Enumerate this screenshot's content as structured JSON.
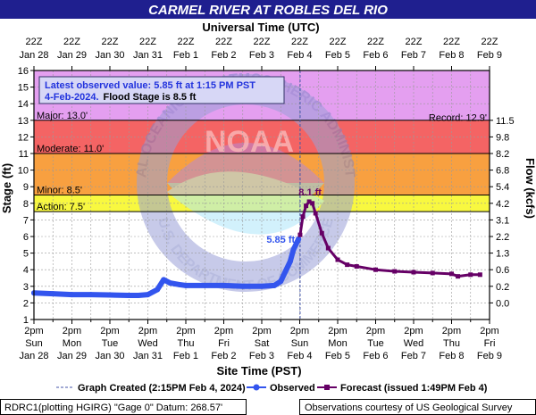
{
  "title": "CARMEL RIVER AT ROBLES DEL RIO",
  "top_axis_title": "Universal Time (UTC)",
  "bottom_axis_title": "Site Time (PST)",
  "left_axis_title": "Stage (ft)",
  "right_axis_title": "Flow (kcfs)",
  "info_box": {
    "line1": "Latest observed value: 5.85 ft at 1:15 PM PST",
    "line2_date": "4-Feb-2024.",
    "line2_flood": "Flood Stage is 8.5 ft"
  },
  "legend": {
    "graph_created": "Graph Created (2:15PM Feb 4, 2024)",
    "observed": "Observed",
    "forecast": "Forecast (issued 1:49PM Feb 4)"
  },
  "footer": {
    "left": "RDRC1(plotting HGIRG) \"Gage 0\" Datum: 268.57'",
    "right": "Observations courtesy of US Geological Survey"
  },
  "watermark_text": "NOAA",
  "watermark_ring_text": "NATIONAL OCEANIC AND ATMOSPHERIC ADMINISTRATION",
  "watermark_ring_text_bottom": "U.S. DEPARTMENT OF COMMERCE",
  "colors": {
    "title_bg": "#1f1f8f",
    "title_fg": "#ffffff",
    "observed": "#3355ee",
    "forecast": "#660066",
    "record_band": "#e49ff0",
    "major_band": "#f46464",
    "moderate_band": "#f8a040",
    "minor_band": "#f8f840",
    "action_band": "#f8f8a0"
  },
  "chart_data": {
    "type": "line",
    "x_unit": "PST date-time 2024",
    "xlim": [
      "2024-01-28 14:00",
      "2024-02-09 14:00"
    ],
    "ylim": [
      1,
      16
    ],
    "y_ticks": [
      1,
      2,
      3,
      4,
      5,
      6,
      7,
      8,
      9,
      10,
      11,
      12,
      13,
      14,
      15,
      16
    ],
    "bottom_ticks": [
      {
        "top": "2pm",
        "mid": "Sun",
        "bot": "Jan 28"
      },
      {
        "top": "2pm",
        "mid": "Mon",
        "bot": "Jan 29"
      },
      {
        "top": "2pm",
        "mid": "Tue",
        "bot": "Jan 30"
      },
      {
        "top": "2pm",
        "mid": "Wed",
        "bot": "Jan 31"
      },
      {
        "top": "2pm",
        "mid": "Thu",
        "bot": "Feb 1"
      },
      {
        "top": "2pm",
        "mid": "Fri",
        "bot": "Feb 2"
      },
      {
        "top": "2pm",
        "mid": "Sat",
        "bot": "Feb 3"
      },
      {
        "top": "2pm",
        "mid": "Sun",
        "bot": "Feb 4"
      },
      {
        "top": "2pm",
        "mid": "Mon",
        "bot": "Feb 5"
      },
      {
        "top": "2pm",
        "mid": "Tue",
        "bot": "Feb 6"
      },
      {
        "top": "2pm",
        "mid": "Wed",
        "bot": "Feb 7"
      },
      {
        "top": "2pm",
        "mid": "Thu",
        "bot": "Feb 8"
      },
      {
        "top": "2pm",
        "mid": "Fri",
        "bot": "Feb 9"
      }
    ],
    "top_ticks": [
      {
        "top": "22Z",
        "bot": "Jan 28"
      },
      {
        "top": "22Z",
        "bot": "Jan 29"
      },
      {
        "top": "22Z",
        "bot": "Jan 30"
      },
      {
        "top": "22Z",
        "bot": "Jan 31"
      },
      {
        "top": "22Z",
        "bot": "Feb 1"
      },
      {
        "top": "22Z",
        "bot": "Feb 2"
      },
      {
        "top": "22Z",
        "bot": "Feb 3"
      },
      {
        "top": "22Z",
        "bot": "Feb 4"
      },
      {
        "top": "22Z",
        "bot": "Feb 5"
      },
      {
        "top": "22Z",
        "bot": "Feb 6"
      },
      {
        "top": "22Z",
        "bot": "Feb 7"
      },
      {
        "top": "22Z",
        "bot": "Feb 8"
      },
      {
        "top": "22Z",
        "bot": "Feb 9"
      }
    ],
    "flow_ticks": [
      {
        "stage": 2.0,
        "label": "0.0"
      },
      {
        "stage": 3.0,
        "label": "0.2"
      },
      {
        "stage": 4.0,
        "label": "0.6"
      },
      {
        "stage": 5.0,
        "label": "1.3"
      },
      {
        "stage": 6.0,
        "label": "2.2"
      },
      {
        "stage": 7.0,
        "label": "3.1"
      },
      {
        "stage": 8.0,
        "label": "4.2"
      },
      {
        "stage": 9.0,
        "label": "5.4"
      },
      {
        "stage": 10.0,
        "label": "6.8"
      },
      {
        "stage": 11.0,
        "label": "8.2"
      },
      {
        "stage": 12.0,
        "label": "9.8"
      },
      {
        "stage": 13.0,
        "label": "11.5"
      }
    ],
    "flood_categories": [
      {
        "name": "Record",
        "label": "Record: 12.9'",
        "stage": 12.9,
        "from": 13.0,
        "to": 16.0
      },
      {
        "name": "Major",
        "label": "Major: 13.0'",
        "stage": 13.0,
        "from": 11.0,
        "to": 13.0
      },
      {
        "name": "Moderate",
        "label": "Moderate: 11.0'",
        "stage": 11.0,
        "from": 8.5,
        "to": 11.0
      },
      {
        "name": "Minor",
        "label": "Minor: 8.5'",
        "stage": 8.5,
        "from": 7.5,
        "to": 8.5
      },
      {
        "name": "Action",
        "label": "Action: 7.5'",
        "stage": 7.5,
        "from": 7.5,
        "to": 7.5
      }
    ],
    "graph_created": "2024-02-04 14:15",
    "series": [
      {
        "name": "Observed",
        "peak_label": "5.85 ft",
        "points": [
          [
            "2024-01-28 14:00",
            2.6
          ],
          [
            "2024-01-29 02:00",
            2.55
          ],
          [
            "2024-01-29 14:00",
            2.5
          ],
          [
            "2024-01-30 02:00",
            2.5
          ],
          [
            "2024-01-30 14:00",
            2.48
          ],
          [
            "2024-01-31 02:00",
            2.45
          ],
          [
            "2024-01-31 08:00",
            2.45
          ],
          [
            "2024-01-31 14:00",
            2.5
          ],
          [
            "2024-01-31 20:00",
            2.8
          ],
          [
            "2024-02-01 00:00",
            3.4
          ],
          [
            "2024-02-01 04:00",
            3.2
          ],
          [
            "2024-02-01 10:00",
            3.1
          ],
          [
            "2024-02-01 14:00",
            3.05
          ],
          [
            "2024-02-02 02:00",
            3.05
          ],
          [
            "2024-02-02 14:00",
            3.05
          ],
          [
            "2024-02-03 02:00",
            3.0
          ],
          [
            "2024-02-03 14:00",
            3.0
          ],
          [
            "2024-02-03 22:00",
            3.05
          ],
          [
            "2024-02-04 02:00",
            3.3
          ],
          [
            "2024-02-04 05:00",
            3.9
          ],
          [
            "2024-02-04 08:00",
            4.5
          ],
          [
            "2024-02-04 10:00",
            5.2
          ],
          [
            "2024-02-04 13:15",
            5.85
          ]
        ]
      },
      {
        "name": "Forecast",
        "peak_label": "8.1 ft",
        "points": [
          [
            "2024-02-04 14:15",
            6.1
          ],
          [
            "2024-02-04 16:00",
            7.2
          ],
          [
            "2024-02-04 18:00",
            7.85
          ],
          [
            "2024-02-04 20:00",
            8.1
          ],
          [
            "2024-02-04 22:00",
            8.0
          ],
          [
            "2024-02-05 00:00",
            7.4
          ],
          [
            "2024-02-05 04:00",
            6.2
          ],
          [
            "2024-02-05 08:00",
            5.3
          ],
          [
            "2024-02-05 14:00",
            4.6
          ],
          [
            "2024-02-05 20:00",
            4.3
          ],
          [
            "2024-02-06 02:00",
            4.2
          ],
          [
            "2024-02-06 14:00",
            4.0
          ],
          [
            "2024-02-07 02:00",
            3.9
          ],
          [
            "2024-02-07 14:00",
            3.85
          ],
          [
            "2024-02-08 02:00",
            3.8
          ],
          [
            "2024-02-08 14:00",
            3.75
          ],
          [
            "2024-02-08 18:00",
            3.6
          ],
          [
            "2024-02-09 02:00",
            3.7
          ],
          [
            "2024-02-09 08:00",
            3.7
          ]
        ]
      }
    ]
  }
}
